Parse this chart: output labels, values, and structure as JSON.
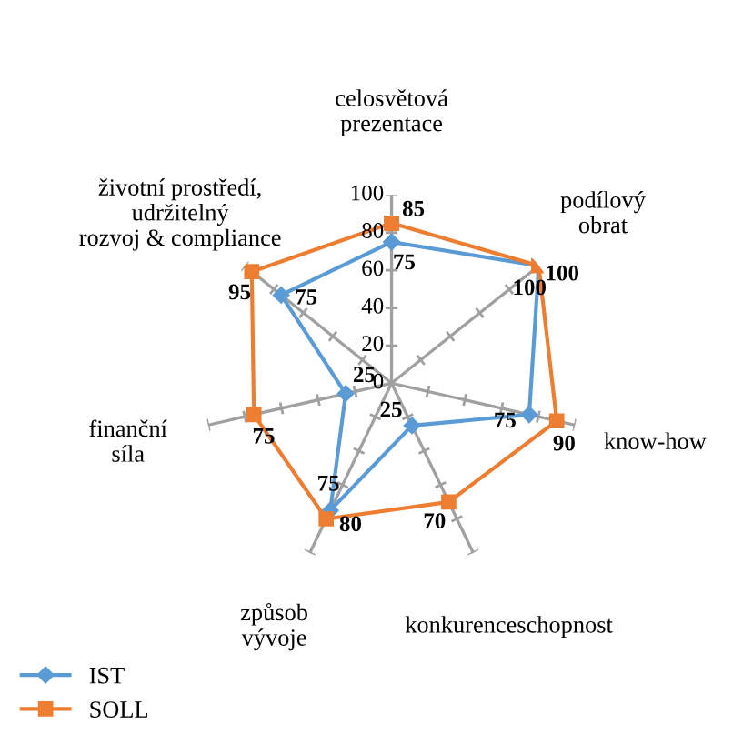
{
  "chart_data": {
    "type": "radar",
    "categories": [
      "celosvětová prezentace",
      "podílový obrat",
      "know-how",
      "konkurenceschopnost",
      "způsob vývoje",
      "finanční síla",
      "životní prostředí, udržitelný rozvoj & compliance"
    ],
    "series": [
      {
        "name": "IST",
        "color": "#5b9bd5",
        "marker": "diamond",
        "values": [
          75,
          100,
          75,
          25,
          75,
          25,
          75
        ]
      },
      {
        "name": "SOLL",
        "color": "#ed7d31",
        "marker": "square",
        "values": [
          85,
          100,
          90,
          70,
          80,
          75,
          95
        ]
      }
    ],
    "ylim": [
      0,
      100
    ],
    "yticks": [
      0,
      20,
      40,
      60,
      80,
      100
    ],
    "data_labels": true,
    "legend": "bottom left",
    "grid": false
  }
}
